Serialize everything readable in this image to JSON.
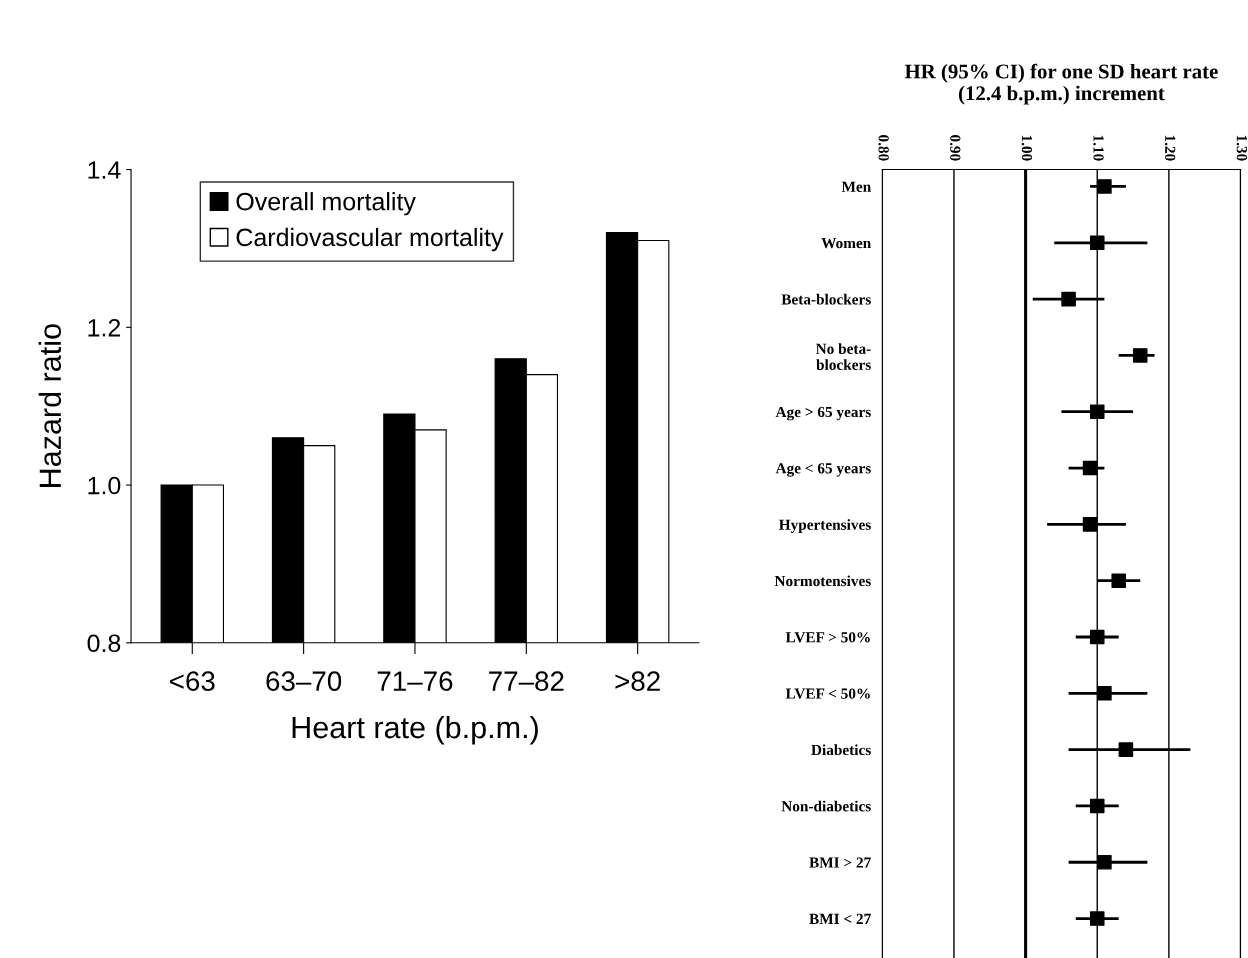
{
  "chart_data": [
    {
      "type": "bar",
      "xlabel": "Heart rate (b.p.m.)",
      "ylabel": "Hazard ratio",
      "categories": [
        "<63",
        "63–70",
        "71–76",
        "77–82",
        ">82"
      ],
      "series": [
        {
          "name": "Overall mortality",
          "color": "#000000",
          "values": [
            1.0,
            1.06,
            1.09,
            1.16,
            1.32
          ]
        },
        {
          "name": "Cardiovascular mortality",
          "color": "#ffffff",
          "values": [
            1.0,
            1.05,
            1.07,
            1.14,
            1.31
          ]
        }
      ],
      "ylim": [
        0.8,
        1.4
      ],
      "yticks": [
        0.8,
        {
          "value": 1.0,
          "label": "1.0"
        },
        1.2,
        1.4
      ],
      "legend": "top left"
    },
    {
      "type": "scatter",
      "orientation": "horizontal",
      "title": "HR (95% CI) for one SD heart rate\n(12.4 b.p.m.) increment",
      "categories": [
        "Men",
        "Women",
        "Beta-blockers",
        "No beta-\nblockers",
        "Age > 65 years",
        "Age < 65 years",
        "Hypertensives",
        "Normotensives",
        "LVEF > 50%",
        "LVEF < 50%",
        "Diabetics",
        "Non-diabetics",
        "BMI > 27",
        "BMI < 27"
      ],
      "series": [
        {
          "color": "#000000",
          "values": [
            1.11,
            1.1,
            1.06,
            1.16,
            1.1,
            1.09,
            1.09,
            1.13,
            1.1,
            1.11,
            1.14,
            1.1,
            1.11,
            1.1
          ],
          "errors": [
            [
              1.09,
              1.14
            ],
            [
              1.04,
              1.17
            ],
            [
              1.01,
              1.11
            ],
            [
              1.13,
              1.18
            ],
            [
              1.05,
              1.15
            ],
            [
              1.06,
              1.11
            ],
            [
              1.03,
              1.14
            ],
            [
              1.1,
              1.16
            ],
            [
              1.07,
              1.13
            ],
            [
              1.06,
              1.17
            ],
            [
              1.06,
              1.23
            ],
            [
              1.07,
              1.13
            ],
            [
              1.06,
              1.17
            ],
            [
              1.07,
              1.13
            ]
          ]
        }
      ],
      "xlim": [
        0.8,
        1.3
      ],
      "xticks": [
        {
          "value": 0.8,
          "label": "0.80"
        },
        {
          "value": 0.9,
          "label": "0.90"
        },
        {
          "value": 1.0,
          "label": "1.00"
        },
        {
          "value": 1.1,
          "label": "1.10"
        },
        {
          "value": 1.2,
          "label": "1.20"
        },
        {
          "value": 1.3,
          "label": "1.30"
        }
      ],
      "ref_lines": [
        {
          "axis": "x",
          "value": 1.0,
          "color": "#000000"
        }
      ],
      "grid": "x",
      "marker": "square",
      "legend": false
    }
  ]
}
